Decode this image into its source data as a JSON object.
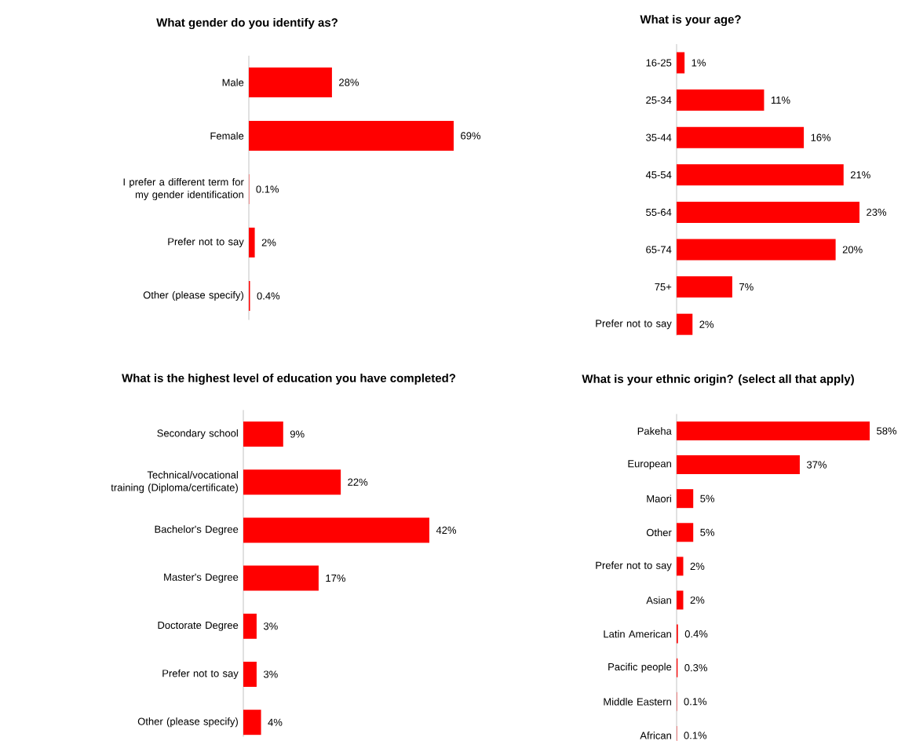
{
  "chart_data": [
    {
      "type": "bar",
      "orientation": "horizontal",
      "title": "What gender do you identify as?",
      "categories": [
        "Male",
        "Female",
        "I prefer a different term for my gender identification",
        "Prefer not to say",
        "Other (please specify)"
      ],
      "values": [
        28,
        69,
        0.1,
        2,
        0.4
      ],
      "value_labels": [
        "28%",
        "69%",
        "0.1%",
        "2%",
        "0.4%"
      ],
      "color": "#ff0000"
    },
    {
      "type": "bar",
      "orientation": "horizontal",
      "title": "What is your age?",
      "categories": [
        "16-25",
        "25-34",
        "35-44",
        "45-54",
        "55-64",
        "65-74",
        "75+",
        "Prefer not to say"
      ],
      "values": [
        1,
        11,
        16,
        21,
        23,
        20,
        7,
        2
      ],
      "value_labels": [
        "1%",
        "11%",
        "16%",
        "21%",
        "23%",
        "20%",
        "7%",
        "2%"
      ],
      "color": "#ff0000"
    },
    {
      "type": "bar",
      "orientation": "horizontal",
      "title": "What is the highest level of education you have completed?",
      "categories": [
        "Secondary school",
        "Technical/vocational training (Diploma/certificate)",
        "Bachelor's Degree",
        "Master's Degree",
        "Doctorate Degree",
        "Prefer not to say",
        "Other (please specify)"
      ],
      "values": [
        9,
        22,
        42,
        17,
        3,
        3,
        4
      ],
      "value_labels": [
        "9%",
        "22%",
        "42%",
        "17%",
        "3%",
        "3%",
        "4%"
      ],
      "color": "#ff0000"
    },
    {
      "type": "bar",
      "orientation": "horizontal",
      "title": "What is your ethnic origin? (select all that apply)",
      "categories": [
        "Pakeha",
        "European",
        "Maori",
        "Other",
        "Prefer not to say",
        "Asian",
        "Latin American",
        "Pacific people",
        "Middle Eastern",
        "African"
      ],
      "values": [
        58,
        37,
        5,
        5,
        2,
        2,
        0.4,
        0.3,
        0.1,
        0.1
      ],
      "value_labels": [
        "58%",
        "37%",
        "5%",
        "5%",
        "2%",
        "2%",
        "0.4%",
        "0.3%",
        "0.1%",
        "0.1%"
      ],
      "color": "#ff0000"
    }
  ]
}
